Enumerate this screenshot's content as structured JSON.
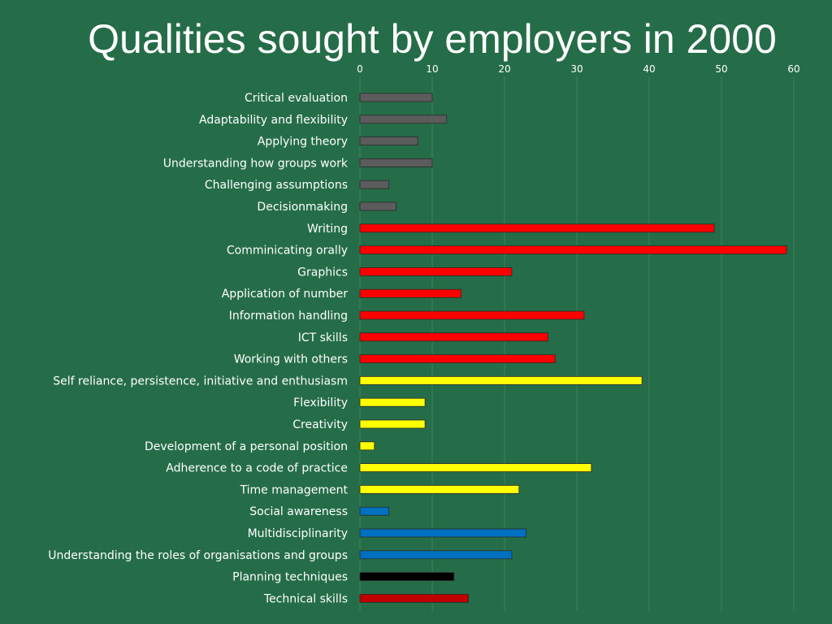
{
  "title": "Qualities sought by employers in 2000",
  "colors": {
    "background": "#256d48",
    "grey": "#5c5c5c",
    "red": "#ff0000",
    "yellow": "#ffff00",
    "blue": "#0070c0",
    "black": "#000000",
    "darkred": "#c00000"
  },
  "chart_data": {
    "type": "bar",
    "orientation": "horizontal",
    "title": "Qualities sought by employers in 2000",
    "xlim": [
      0,
      60
    ],
    "xticks": [
      0,
      10,
      20,
      30,
      40,
      50,
      60
    ],
    "x_axis_position": "top",
    "grid": true,
    "categories": [
      "Critical evaluation",
      "Adaptability and flexibility",
      "Applying theory",
      "Understanding how groups work",
      "Challenging assumptions",
      "Decisionmaking",
      "Writing",
      "Comminicating orally",
      "Graphics",
      "Application of number",
      "Information handling",
      "ICT skills",
      "Working with others",
      "Self reliance, persistence, initiative and enthusiasm",
      "Flexibility",
      "Creativity",
      "Development of a personal position",
      "Adherence to a code of practice",
      "Time management",
      "Social awareness",
      "Multidisciplinarity",
      "Understanding the roles of organisations and groups",
      "Planning techniques",
      "Technical skills"
    ],
    "values": [
      10,
      12,
      8,
      10,
      4,
      5,
      49,
      59,
      21,
      14,
      31,
      26,
      27,
      39,
      9,
      9,
      2,
      32,
      22,
      4,
      23,
      21,
      13,
      15
    ],
    "bar_colors": [
      "#5c5c5c",
      "#5c5c5c",
      "#5c5c5c",
      "#5c5c5c",
      "#5c5c5c",
      "#5c5c5c",
      "#ff0000",
      "#ff0000",
      "#ff0000",
      "#ff0000",
      "#ff0000",
      "#ff0000",
      "#ff0000",
      "#ffff00",
      "#ffff00",
      "#ffff00",
      "#ffff00",
      "#ffff00",
      "#ffff00",
      "#0070c0",
      "#0070c0",
      "#0070c0",
      "#000000",
      "#c00000"
    ]
  }
}
